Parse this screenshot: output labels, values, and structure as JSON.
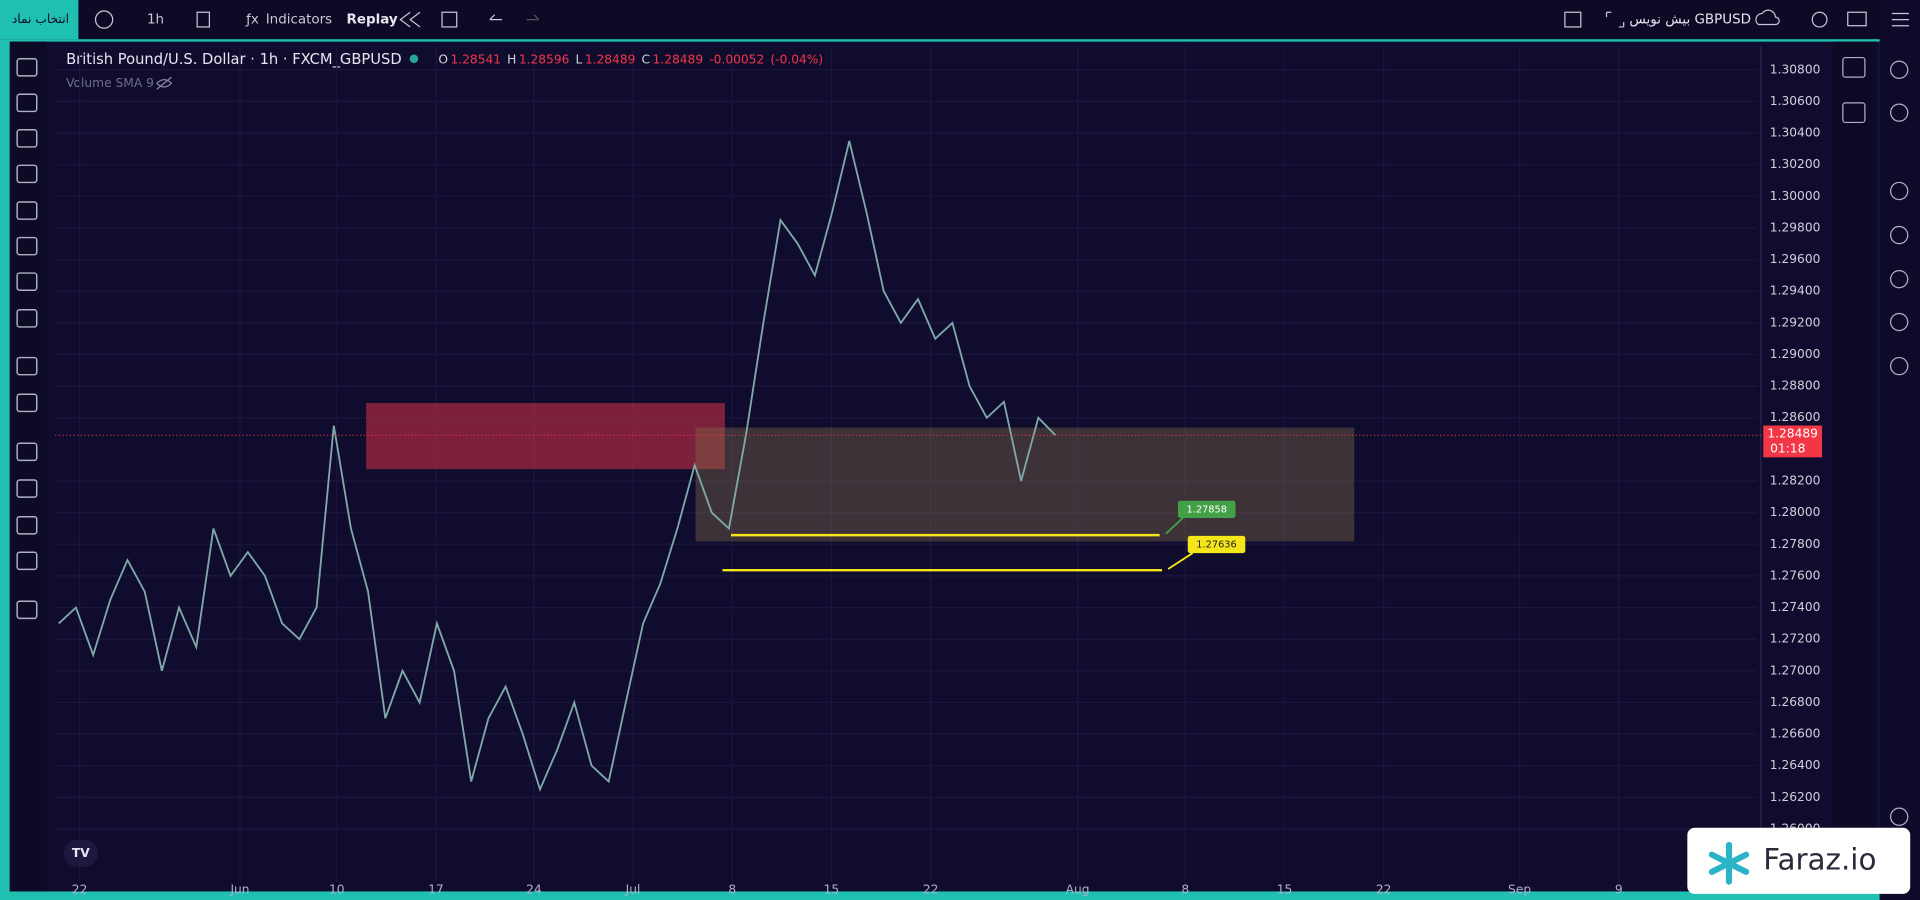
{
  "toolbar": {
    "symbol_button": "انتخاب نماد",
    "interval": "1h",
    "indicators": "Indicators",
    "replay": "Replay",
    "draft": "بیش نویس GBPUSD"
  },
  "chart": {
    "type": "line",
    "title": "British Pound/U.S. Dollar · 1h · FXCM_GBPUSD",
    "ohlc": [
      {
        "label": "O",
        "value": 1.28541
      },
      {
        "label": "H",
        "value": 1.28596
      },
      {
        "label": "L",
        "value": 1.28489
      },
      {
        "label": "C",
        "value": 1.28489
      }
    ],
    "change": -0.00052,
    "change_pct": "(-0.04%)",
    "indicator": "Volume SMA 9",
    "last_price": 1.28489,
    "countdown": "01:18",
    "line_color": "#7fa9a8",
    "closes": [
      1.273,
      1.274,
      1.271,
      1.2745,
      1.277,
      1.275,
      1.27,
      1.274,
      1.2715,
      1.279,
      1.276,
      1.2775,
      1.276,
      1.273,
      1.272,
      1.274,
      1.2855,
      1.279,
      1.275,
      1.267,
      1.27,
      1.268,
      1.273,
      1.27,
      1.263,
      1.267,
      1.269,
      1.266,
      1.2625,
      1.265,
      1.268,
      1.264,
      1.263,
      1.268,
      1.273,
      1.2755,
      1.279,
      1.283,
      1.28,
      1.279,
      1.285,
      1.292,
      1.2985,
      1.297,
      1.295,
      1.299,
      1.3035,
      1.299,
      1.294,
      1.292,
      1.2935,
      1.291,
      1.292,
      1.288,
      1.286,
      1.287,
      1.282,
      1.286,
      1.28489
    ],
    "ylim": [
      1.25667,
      1.30947
    ],
    "yticks": [
      {
        "value": 1.308,
        "label": "1.30800"
      },
      {
        "value": 1.306,
        "label": "1.30600"
      },
      {
        "value": 1.304,
        "label": "1.30400"
      },
      {
        "value": 1.302,
        "label": "1.30200"
      },
      {
        "value": 1.3,
        "label": "1.30000"
      },
      {
        "value": 1.298,
        "label": "1.29800"
      },
      {
        "value": 1.296,
        "label": "1.29600"
      },
      {
        "value": 1.294,
        "label": "1.29400"
      },
      {
        "value": 1.292,
        "label": "1.29200"
      },
      {
        "value": 1.29,
        "label": "1.29000"
      },
      {
        "value": 1.288,
        "label": "1.28800"
      },
      {
        "value": 1.286,
        "label": "1.28600"
      },
      {
        "value": 1.282,
        "label": "1.28200"
      },
      {
        "value": 1.28,
        "label": "1.28000"
      },
      {
        "value": 1.278,
        "label": "1.27800"
      },
      {
        "value": 1.276,
        "label": "1.27600"
      },
      {
        "value": 1.274,
        "label": "1.27400"
      },
      {
        "value": 1.272,
        "label": "1.27200"
      },
      {
        "value": 1.27,
        "label": "1.27000"
      },
      {
        "value": 1.268,
        "label": "1.26800"
      },
      {
        "value": 1.266,
        "label": "1.26600"
      },
      {
        "value": 1.264,
        "label": "1.26400"
      },
      {
        "value": 1.262,
        "label": "1.26200"
      },
      {
        "value": 1.26,
        "label": "1.26000"
      }
    ],
    "xlabels": [
      "22",
      "Jun",
      "10",
      "17",
      "24",
      "Jul",
      "8",
      "15",
      "22",
      "Aug",
      "8",
      "15",
      "22",
      "Sep",
      "9"
    ],
    "zones": [
      {
        "top": 1.28693,
        "bottom": 1.28275,
        "color": "rgba(190,45,70,0.62)"
      },
      {
        "top": 1.28538,
        "bottom": 1.27818,
        "color": "rgba(125,105,70,0.42)"
      }
    ],
    "levels": [
      {
        "value": 1.27858,
        "label_color": "#43a047"
      },
      {
        "value": 1.27636,
        "label_color": "#f5e61a"
      }
    ]
  },
  "watermark": "Faraz.io"
}
